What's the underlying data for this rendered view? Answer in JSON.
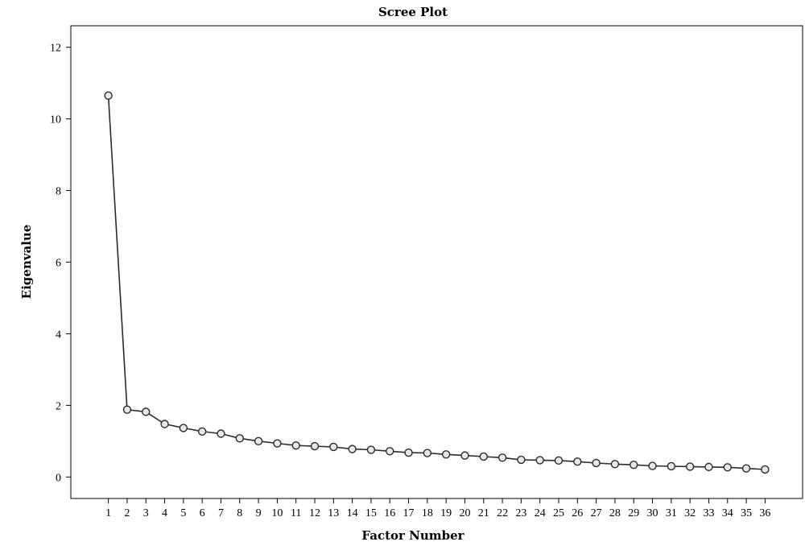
{
  "chart_data": {
    "type": "line",
    "title": "Scree Plot",
    "xlabel": "Factor Number",
    "ylabel": "Eigenvalue",
    "x": [
      1,
      2,
      3,
      4,
      5,
      6,
      7,
      8,
      9,
      10,
      11,
      12,
      13,
      14,
      15,
      16,
      17,
      18,
      19,
      20,
      21,
      22,
      23,
      24,
      25,
      26,
      27,
      28,
      29,
      30,
      31,
      32,
      33,
      34,
      35,
      36
    ],
    "x_tick_labels": [
      "1",
      "2",
      "3",
      "4",
      "5",
      "6",
      "7",
      "8",
      "9",
      "10",
      "11",
      "12",
      "13",
      "14",
      "15",
      "16",
      "17",
      "18",
      "19",
      "20",
      "21",
      "22",
      "23",
      "24",
      "25",
      "26",
      "27",
      "28",
      "29",
      "30",
      "31",
      "32",
      "33",
      "34",
      "35",
      "36"
    ],
    "y_ticks": [
      0,
      2,
      4,
      6,
      8,
      10,
      12
    ],
    "y_tick_labels": [
      "0",
      "2",
      "4",
      "6",
      "8",
      "10",
      "12"
    ],
    "ylim": [
      -0.6,
      12.6
    ],
    "xlim": [
      -1,
      38
    ],
    "series": [
      {
        "values": [
          10.65,
          1.88,
          1.82,
          1.48,
          1.37,
          1.27,
          1.21,
          1.08,
          1.0,
          0.94,
          0.88,
          0.86,
          0.84,
          0.78,
          0.76,
          0.72,
          0.68,
          0.67,
          0.63,
          0.6,
          0.57,
          0.54,
          0.48,
          0.47,
          0.46,
          0.43,
          0.39,
          0.36,
          0.34,
          0.31,
          0.3,
          0.29,
          0.28,
          0.27,
          0.24,
          0.21
        ]
      }
    ],
    "grid": false,
    "legend": "none",
    "marker": "open-circle",
    "colors": {
      "line": "#2b2b2b",
      "marker_fill": "#e8e8e8"
    }
  }
}
